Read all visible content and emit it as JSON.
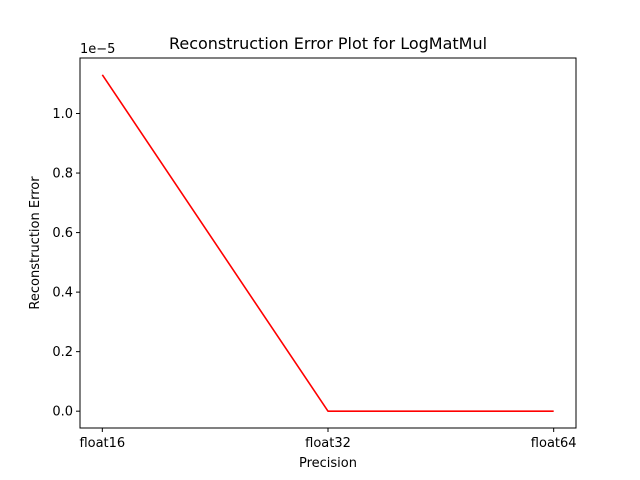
{
  "chart_data": {
    "type": "line",
    "title": "Reconstruction Error Plot for LogMatMul",
    "xlabel": "Precision",
    "ylabel": "Reconstruction Error",
    "categories": [
      "float16",
      "float32",
      "float64"
    ],
    "series": [
      {
        "values": [
          1.13e-05,
          0.0,
          0.0
        ],
        "color": "#ff0000"
      }
    ],
    "ylim": [
      -5.65e-07,
      1.1865e-05
    ],
    "yticks": [
      0.0,
      2e-06,
      4e-06,
      6e-06,
      8e-06,
      1e-05
    ],
    "ytick_labels": [
      "0.0",
      "0.2",
      "0.4",
      "0.6",
      "0.8",
      "1.0"
    ],
    "y_offset_text": "1e−5",
    "grid": false,
    "legend": "none"
  }
}
